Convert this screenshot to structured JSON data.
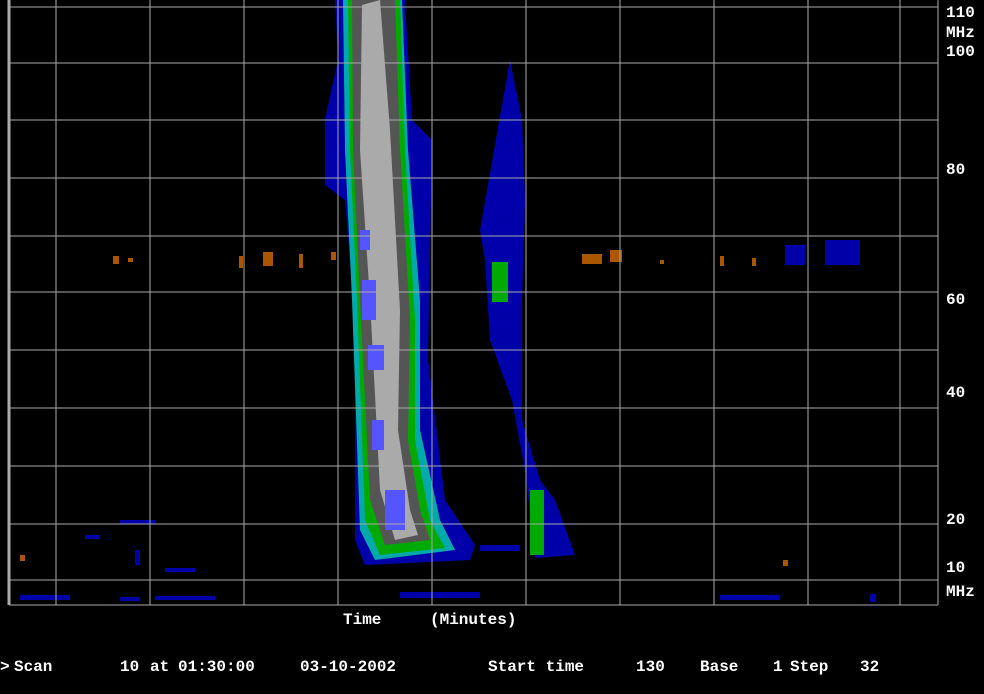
{
  "axis": {
    "frequency_labels": [
      "110",
      "MHz",
      "100",
      "80",
      "60",
      "40",
      "20",
      "10",
      "MHz"
    ],
    "time_label": "Time",
    "time_unit": "(Minutes)"
  },
  "status": {
    "prompt": ">",
    "scan_label": "Scan",
    "scan": 10,
    "at_label": "at",
    "time": "01:30:00",
    "date": "03-10-2002",
    "start_label": "Start time",
    "start": 130,
    "base_label": "Base",
    "base": 1,
    "step_label": "Step",
    "step": 32
  }
}
